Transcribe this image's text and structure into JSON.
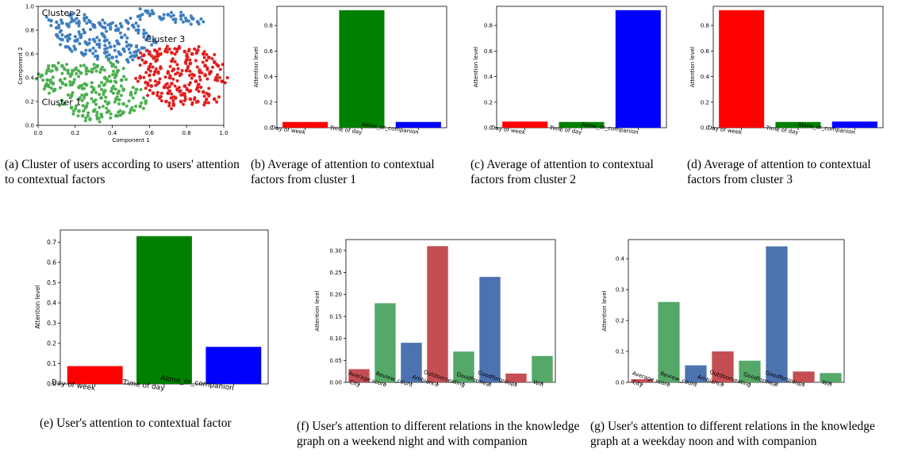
{
  "panels": [
    {
      "id": "a",
      "caption": "(a) Cluster of users according to users' attention to contextual factors",
      "chart_data": {
        "type": "scatter",
        "xlabel": "Component 1",
        "ylabel": "Component 2",
        "xlim": [
          0,
          1
        ],
        "ylim": [
          0,
          1
        ],
        "xticks": [
          "0.0",
          "0.2",
          "0.4",
          "0.6",
          "0.8",
          "1.0"
        ],
        "yticks": [
          "0.0",
          "0.2",
          "0.4",
          "0.6",
          "0.8",
          "1.0"
        ],
        "annotations": [
          "Cluster 1",
          "Cluster 2",
          "Cluster 3"
        ],
        "series": [
          {
            "color": "#4caf50",
            "center": [
              0.27,
              0.3
            ],
            "points": [
              [
                0.02,
                0.42
              ],
              [
                0.05,
                0.46
              ],
              [
                0.08,
                0.5
              ],
              [
                0.1,
                0.47
              ],
              [
                0.13,
                0.5
              ],
              [
                0.16,
                0.46
              ],
              [
                0.18,
                0.43
              ],
              [
                0.2,
                0.47
              ],
              [
                0.23,
                0.44
              ],
              [
                0.26,
                0.48
              ],
              [
                0.29,
                0.45
              ],
              [
                0.32,
                0.5
              ],
              [
                0.34,
                0.47
              ],
              [
                0.05,
                0.38
              ],
              [
                0.08,
                0.35
              ],
              [
                0.12,
                0.38
              ],
              [
                0.15,
                0.34
              ],
              [
                0.19,
                0.36
              ],
              [
                0.22,
                0.32
              ],
              [
                0.26,
                0.34
              ],
              [
                0.3,
                0.3
              ],
              [
                0.33,
                0.33
              ],
              [
                0.36,
                0.29
              ],
              [
                0.4,
                0.31
              ],
              [
                0.43,
                0.27
              ],
              [
                0.46,
                0.3
              ],
              [
                0.5,
                0.26
              ],
              [
                0.53,
                0.3
              ],
              [
                0.18,
                0.25
              ],
              [
                0.22,
                0.22
              ],
              [
                0.26,
                0.26
              ],
              [
                0.3,
                0.2
              ],
              [
                0.34,
                0.23
              ],
              [
                0.38,
                0.19
              ],
              [
                0.42,
                0.22
              ],
              [
                0.46,
                0.18
              ],
              [
                0.14,
                0.18
              ],
              [
                0.18,
                0.15
              ],
              [
                0.22,
                0.12
              ],
              [
                0.26,
                0.16
              ],
              [
                0.3,
                0.12
              ],
              [
                0.34,
                0.09
              ],
              [
                0.38,
                0.12
              ],
              [
                0.42,
                0.08
              ],
              [
                0.46,
                0.11
              ],
              [
                0.5,
                0.13
              ],
              [
                0.55,
                0.16
              ],
              [
                0.58,
                0.2
              ],
              [
                0.36,
                0.4
              ],
              [
                0.39,
                0.37
              ],
              [
                0.42,
                0.42
              ],
              [
                0.4,
                0.5
              ],
              [
                0.43,
                0.46
              ],
              [
                0.38,
                0.55
              ],
              [
                0.45,
                0.38
              ],
              [
                0.09,
                0.3
              ],
              [
                0.04,
                0.33
              ],
              [
                0.24,
                0.08
              ],
              [
                0.28,
                0.05
              ],
              [
                0.32,
                0.06
              ]
            ]
          },
          {
            "color": "#3f7fbf",
            "center": [
              0.3,
              0.8
            ],
            "points": [
              [
                0.1,
                0.82
              ],
              [
                0.13,
                0.86
              ],
              [
                0.16,
                0.84
              ],
              [
                0.19,
                0.88
              ],
              [
                0.22,
                0.86
              ],
              [
                0.25,
                0.9
              ],
              [
                0.28,
                0.87
              ],
              [
                0.3,
                0.83
              ],
              [
                0.33,
                0.86
              ],
              [
                0.36,
                0.82
              ],
              [
                0.39,
                0.85
              ],
              [
                0.42,
                0.8
              ],
              [
                0.45,
                0.83
              ],
              [
                0.48,
                0.87
              ],
              [
                0.51,
                0.84
              ],
              [
                0.54,
                0.8
              ],
              [
                0.57,
                0.77
              ],
              [
                0.6,
                0.73
              ],
              [
                0.63,
                0.7
              ],
              [
                0.1,
                0.76
              ],
              [
                0.13,
                0.72
              ],
              [
                0.16,
                0.75
              ],
              [
                0.2,
                0.71
              ],
              [
                0.23,
                0.74
              ],
              [
                0.26,
                0.69
              ],
              [
                0.3,
                0.72
              ],
              [
                0.33,
                0.68
              ],
              [
                0.36,
                0.71
              ],
              [
                0.39,
                0.66
              ],
              [
                0.43,
                0.69
              ],
              [
                0.46,
                0.64
              ],
              [
                0.5,
                0.67
              ],
              [
                0.53,
                0.62
              ],
              [
                0.56,
                0.65
              ],
              [
                0.2,
                0.64
              ],
              [
                0.24,
                0.6
              ],
              [
                0.28,
                0.63
              ],
              [
                0.32,
                0.58
              ],
              [
                0.36,
                0.61
              ],
              [
                0.4,
                0.57
              ],
              [
                0.44,
                0.6
              ],
              [
                0.48,
                0.55
              ],
              [
                0.52,
                0.58
              ],
              [
                0.55,
                0.92
              ],
              [
                0.58,
                0.96
              ],
              [
                0.62,
                0.94
              ],
              [
                0.66,
                0.9
              ],
              [
                0.7,
                0.93
              ],
              [
                0.74,
                0.89
              ],
              [
                0.77,
                0.92
              ],
              [
                0.8,
                0.88
              ],
              [
                0.83,
                0.9
              ],
              [
                0.86,
                0.87
              ],
              [
                0.07,
                0.88
              ],
              [
                0.18,
                0.93
              ],
              [
                0.15,
                0.66
              ],
              [
                0.25,
                0.78
              ],
              [
                0.35,
                0.76
              ],
              [
                0.45,
                0.74
              ]
            ]
          },
          {
            "color": "#e02020",
            "center": [
              0.75,
              0.43
            ],
            "points": [
              [
                0.6,
                0.6
              ],
              [
                0.63,
                0.63
              ],
              [
                0.66,
                0.6
              ],
              [
                0.69,
                0.64
              ],
              [
                0.72,
                0.61
              ],
              [
                0.76,
                0.65
              ],
              [
                0.79,
                0.62
              ],
              [
                0.83,
                0.6
              ],
              [
                0.86,
                0.63
              ],
              [
                0.89,
                0.6
              ],
              [
                0.92,
                0.57
              ],
              [
                0.95,
                0.53
              ],
              [
                0.97,
                0.5
              ],
              [
                0.58,
                0.53
              ],
              [
                0.6,
                0.49
              ],
              [
                0.63,
                0.45
              ],
              [
                0.66,
                0.48
              ],
              [
                0.7,
                0.44
              ],
              [
                0.73,
                0.47
              ],
              [
                0.77,
                0.43
              ],
              [
                0.8,
                0.46
              ],
              [
                0.84,
                0.42
              ],
              [
                0.87,
                0.46
              ],
              [
                0.9,
                0.42
              ],
              [
                0.93,
                0.45
              ],
              [
                0.96,
                0.4
              ],
              [
                0.99,
                0.37
              ],
              [
                0.55,
                0.4
              ],
              [
                0.58,
                0.36
              ],
              [
                0.61,
                0.33
              ],
              [
                0.65,
                0.36
              ],
              [
                0.68,
                0.32
              ],
              [
                0.72,
                0.35
              ],
              [
                0.75,
                0.3
              ],
              [
                0.79,
                0.33
              ],
              [
                0.82,
                0.29
              ],
              [
                0.86,
                0.32
              ],
              [
                0.89,
                0.28
              ],
              [
                0.92,
                0.25
              ],
              [
                0.95,
                0.22
              ],
              [
                0.62,
                0.27
              ],
              [
                0.66,
                0.24
              ],
              [
                0.7,
                0.27
              ],
              [
                0.74,
                0.23
              ],
              [
                0.78,
                0.26
              ],
              [
                0.82,
                0.22
              ],
              [
                0.86,
                0.2
              ],
              [
                0.9,
                0.19
              ],
              [
                0.69,
                0.2
              ],
              [
                0.73,
                0.17
              ],
              [
                0.77,
                0.2
              ],
              [
                0.6,
                0.42
              ],
              [
                0.64,
                0.55
              ],
              [
                0.72,
                0.54
              ],
              [
                0.82,
                0.52
              ],
              [
                0.9,
                0.5
              ],
              [
                0.85,
                0.37
              ],
              [
                0.57,
                0.59
              ],
              [
                0.8,
                0.55
              ],
              [
                0.71,
                0.4
              ]
            ]
          }
        ]
      }
    },
    {
      "id": "b",
      "caption": "(b) Average of attention to contextual factors from cluster 1",
      "chart_data": {
        "type": "bar",
        "ylabel": "Attention level",
        "categories": [
          "Day of week",
          "Time of day",
          "Alone_or_companion"
        ],
        "values": [
          0.045,
          0.92,
          0.045
        ],
        "colors": [
          "#ff0000",
          "#008000",
          "#0000ff"
        ],
        "ylim": [
          0,
          0.95
        ],
        "yticks": [
          "0.0",
          "0.2",
          "0.4",
          "0.6",
          "0.8"
        ]
      }
    },
    {
      "id": "c",
      "caption": "(c) Average of attention to contextual factors from cluster 2",
      "chart_data": {
        "type": "bar",
        "ylabel": "Attention level",
        "categories": [
          "Day of week",
          "Time of day",
          "Alone_or_companion"
        ],
        "values": [
          0.048,
          0.045,
          0.92
        ],
        "colors": [
          "#ff0000",
          "#008000",
          "#0000ff"
        ],
        "ylim": [
          0,
          0.95
        ],
        "yticks": [
          "0.0",
          "0.2",
          "0.4",
          "0.6",
          "0.8"
        ]
      }
    },
    {
      "id": "d",
      "caption": "(d) Average of attention to contextual factors from cluster 3",
      "chart_data": {
        "type": "bar",
        "ylabel": "Attention level",
        "categories": [
          "Day of week",
          "Time of day",
          "Alone_or_companion"
        ],
        "values": [
          0.92,
          0.045,
          0.048
        ],
        "colors": [
          "#ff0000",
          "#008000",
          "#0000ff"
        ],
        "ylim": [
          0,
          0.95
        ],
        "yticks": [
          "0.0",
          "0.2",
          "0.4",
          "0.6",
          "0.8"
        ]
      }
    },
    {
      "id": "e",
      "caption": "(e) User's attention to contextual factor",
      "chart_data": {
        "type": "bar",
        "ylabel": "Attention level",
        "categories": [
          "Day of week",
          "Time of day",
          "Alone_or_companion"
        ],
        "values": [
          0.088,
          0.73,
          0.183
        ],
        "colors": [
          "#ff0000",
          "#008000",
          "#0000ff"
        ],
        "ylim": [
          0,
          0.76
        ],
        "yticks": [
          "0.0",
          "0.1",
          "0.2",
          "0.3",
          "0.4",
          "0.5",
          "0.6",
          "0.7"
        ]
      }
    },
    {
      "id": "f",
      "caption": "(f) User's attention to different relations in the knowledge graph on a weekend night and with companion",
      "chart_data": {
        "type": "bar",
        "ylabel": "Attention level",
        "categories": [
          "City",
          "Average score",
          "Review_count",
          "Ambience",
          "Outdoorseating",
          "Goodformeal",
          "Goodforgroups",
          "Wifi"
        ],
        "values": [
          0.03,
          0.18,
          0.09,
          0.31,
          0.07,
          0.24,
          0.02,
          0.06
        ],
        "colors": [
          "#c44e52",
          "#55a868",
          "#4c72b0",
          "#c44e52",
          "#55a868",
          "#4c72b0",
          "#c44e52",
          "#55a868"
        ],
        "ylim": [
          0,
          0.325
        ],
        "yticks": [
          "0.00",
          "0.05",
          "0.10",
          "0.15",
          "0.20",
          "0.25",
          "0.30"
        ]
      }
    },
    {
      "id": "g",
      "caption": "(g) User's attention to different relations in the knowledge graph at a weekday noon and with companion",
      "chart_data": {
        "type": "bar",
        "ylabel": "Attention level",
        "categories": [
          "City",
          "Average score",
          "Review_count",
          "Ambience",
          "Outdoorseating",
          "Goodformeal",
          "Goodforgroups",
          "Wifi"
        ],
        "values": [
          0.01,
          0.26,
          0.055,
          0.1,
          0.07,
          0.44,
          0.035,
          0.03
        ],
        "colors": [
          "#c44e52",
          "#55a868",
          "#4c72b0",
          "#c44e52",
          "#55a868",
          "#4c72b0",
          "#c44e52",
          "#55a868"
        ],
        "ylim": [
          0,
          0.462
        ],
        "yticks": [
          "0.0",
          "0.1",
          "0.2",
          "0.3",
          "0.4"
        ]
      }
    }
  ]
}
